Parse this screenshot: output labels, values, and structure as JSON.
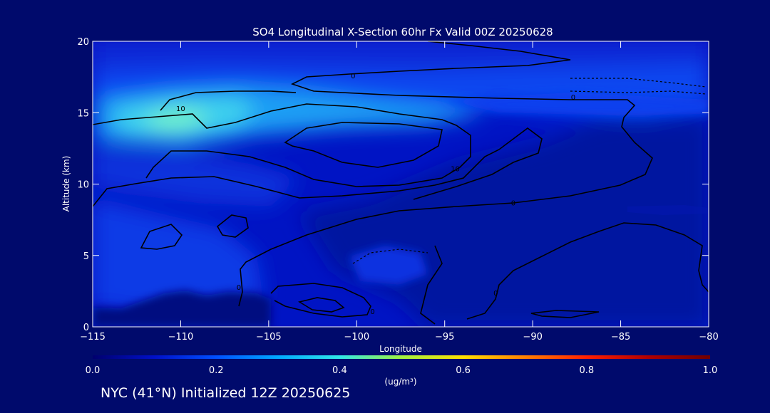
{
  "chart_data": {
    "type": "heatmap",
    "title": "SO4 Longitudinal X-Section 60hr  Fx Valid 00Z 20250628",
    "xlabel": "Longitude",
    "ylabel": "Altitude (km)",
    "xlim": [
      -115,
      -80
    ],
    "ylim": [
      0,
      20
    ],
    "x_ticks": [
      -115,
      -110,
      -105,
      -100,
      -95,
      -90,
      -85,
      -80
    ],
    "x_tick_labels": [
      "−115",
      "−110",
      "−105",
      "−100",
      "−95",
      "−90",
      "−85",
      "−80"
    ],
    "y_ticks": [
      0,
      5,
      10,
      15,
      20
    ],
    "y_tick_labels": [
      "0",
      "5",
      "10",
      "15",
      "20"
    ],
    "colorbar": {
      "label": "(ug/m³)",
      "min": 0.0,
      "max": 1.0,
      "ticks": [
        0.0,
        0.2,
        0.4,
        0.6,
        0.8,
        1.0
      ],
      "tick_labels": [
        "0.0",
        "0.2",
        "0.4",
        "0.6",
        "0.8",
        "1.0"
      ],
      "colors": [
        "#00006e",
        "#0010c8",
        "#0050ff",
        "#00a8ff",
        "#30e8e8",
        "#a0f040",
        "#ffe000",
        "#ff8000",
        "#ff2000",
        "#b00000",
        "#700000"
      ]
    },
    "contour_labels": [
      {
        "text": "0",
        "lon": -100.2,
        "alt": 17.6
      },
      {
        "text": "0",
        "lon": -87.7,
        "alt": 16.1
      },
      {
        "text": "10",
        "lon": -110.0,
        "alt": 15.3
      },
      {
        "text": "10",
        "lon": -94.4,
        "alt": 11.1
      },
      {
        "text": "0",
        "lon": -91.1,
        "alt": 8.7
      },
      {
        "text": "0",
        "lon": -106.7,
        "alt": 2.8
      },
      {
        "text": "0",
        "lon": -99.1,
        "alt": 1.1
      },
      {
        "text": "0",
        "lon": -92.1,
        "alt": 2.4
      }
    ],
    "field_peaks": [
      {
        "lon": -110.2,
        "alt": 13.9,
        "value": 0.38
      },
      {
        "lon": -106,
        "alt": 15.4,
        "value": 0.3
      },
      {
        "lon": -100,
        "alt": 14.8,
        "value": 0.22
      }
    ]
  },
  "footer": {
    "text": "NYC (41°N) Initialized 12Z 20250625"
  }
}
